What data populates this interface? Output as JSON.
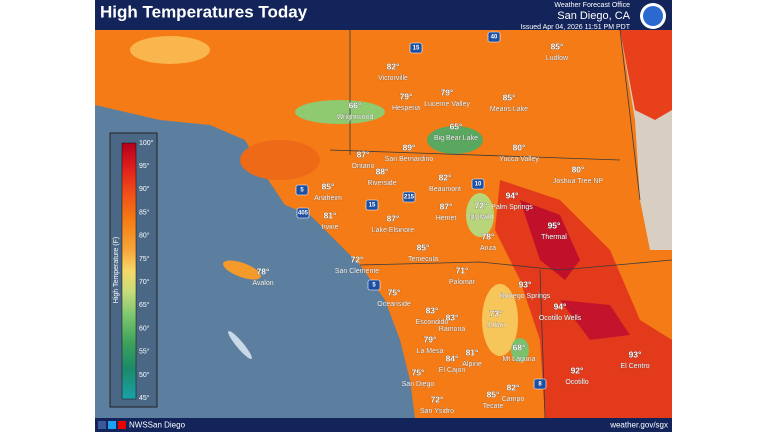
{
  "header": {
    "title": "High Temperatures Today",
    "office": "Weather Forecast Office",
    "location": "San Diego, CA",
    "issued": "Issued Apr 04, 2026 11:51 PM PDT"
  },
  "legend": {
    "title": "High Temperature (F)",
    "labels": [
      "100°",
      "95°",
      "90°",
      "85°",
      "80°",
      "75°",
      "70°",
      "65°",
      "60°",
      "55°",
      "50°",
      "45°"
    ]
  },
  "places": [
    {
      "temp": "85°",
      "name": "Ludlow"
    },
    {
      "temp": "82°",
      "name": "Victorville"
    },
    {
      "temp": "79°",
      "name": "Hesperia"
    },
    {
      "temp": "79°",
      "name": "Lucerne Valley"
    },
    {
      "temp": "85°",
      "name": "Means Lake"
    },
    {
      "temp": "66°",
      "name": "Wrightwood"
    },
    {
      "temp": "65°",
      "name": "Big Bear Lake"
    },
    {
      "temp": "80°",
      "name": "Yucca Valley"
    },
    {
      "temp": "87°",
      "name": "Ontario"
    },
    {
      "temp": "89°",
      "name": "San Bernardino"
    },
    {
      "temp": "80°",
      "name": "Joshua Tree NP"
    },
    {
      "temp": "88°",
      "name": "Riverside"
    },
    {
      "temp": "82°",
      "name": "Beaumont"
    },
    {
      "temp": "85°",
      "name": "Anaheim"
    },
    {
      "temp": "94°",
      "name": "Palm Springs"
    },
    {
      "temp": "81°",
      "name": "Irvine"
    },
    {
      "temp": "87°",
      "name": "Lake Elsinore"
    },
    {
      "temp": "87°",
      "name": "Hemet"
    },
    {
      "temp": "72°",
      "name": "Idyllwild"
    },
    {
      "temp": "95°",
      "name": "Thermal"
    },
    {
      "temp": "78°",
      "name": "Anza"
    },
    {
      "temp": "85°",
      "name": "Temecula"
    },
    {
      "temp": "72°",
      "name": "San Clemente"
    },
    {
      "temp": "78°",
      "name": "Avalon"
    },
    {
      "temp": "71°",
      "name": "Palomar"
    },
    {
      "temp": "93°",
      "name": "Borrego Springs"
    },
    {
      "temp": "75°",
      "name": "Oceanside"
    },
    {
      "temp": "83°",
      "name": "Escondido"
    },
    {
      "temp": "83°",
      "name": "Ramona"
    },
    {
      "temp": "94°",
      "name": "Ocotillo Wells"
    },
    {
      "temp": "73°",
      "name": "Julian"
    },
    {
      "temp": "79°",
      "name": "La Mesa"
    },
    {
      "temp": "68°",
      "name": "Mt Laguna"
    },
    {
      "temp": "84°",
      "name": "El Cajon"
    },
    {
      "temp": "81°",
      "name": "Alpine"
    },
    {
      "temp": "93°",
      "name": "El Centro"
    },
    {
      "temp": "92°",
      "name": "Ocotillo"
    },
    {
      "temp": "75°",
      "name": "San Diego"
    },
    {
      "temp": "82°",
      "name": "Campo"
    },
    {
      "temp": "85°",
      "name": "Tecate"
    },
    {
      "temp": "72°",
      "name": "San Ysidro"
    }
  ],
  "highways": [
    "15",
    "40",
    "5",
    "405",
    "215",
    "15",
    "10",
    "5",
    "8"
  ],
  "footer": {
    "handle": "NWSSan Diego",
    "url": "weather.gov/sgx"
  }
}
